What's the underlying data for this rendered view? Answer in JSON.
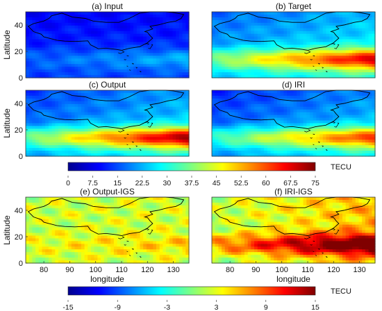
{
  "chart_data": [
    {
      "type": "heatmap",
      "title": "(a) Input",
      "ylabel": "Latitude",
      "yticks": [
        "0",
        "20",
        "40"
      ],
      "ylim": [
        0,
        50
      ],
      "xlim": [
        73,
        136
      ],
      "colorscale": "TECU",
      "range": [
        0,
        75
      ],
      "field": {
        "base": 14,
        "lat_gain": -0.1,
        "eq_peak": 6,
        "east_gain": 0.03
      }
    },
    {
      "type": "heatmap",
      "title": "(b) Target",
      "yticks": [],
      "ylim": [
        0,
        50
      ],
      "xlim": [
        73,
        136
      ],
      "colorscale": "TECU",
      "range": [
        0,
        75
      ],
      "field": {
        "base": 24,
        "lat_gain": -0.15,
        "eq_peak": 26,
        "east_gain": 0.35
      }
    },
    {
      "type": "heatmap",
      "title": "(c) Output",
      "ylabel": "Latitude",
      "yticks": [
        "0",
        "20",
        "40"
      ],
      "ylim": [
        0,
        50
      ],
      "xlim": [
        73,
        136
      ],
      "colorscale": "TECU",
      "range": [
        0,
        75
      ],
      "field": {
        "base": 21,
        "lat_gain": -0.15,
        "eq_peak": 30,
        "east_gain": 0.4
      }
    },
    {
      "type": "heatmap",
      "title": "(d) IRI",
      "yticks": [],
      "ylim": [
        0,
        50
      ],
      "xlim": [
        73,
        136
      ],
      "colorscale": "TECU",
      "range": [
        0,
        75
      ],
      "field": {
        "base": 20,
        "lat_gain": -0.16,
        "eq_peak": 24,
        "east_gain": 0.4
      }
    },
    {
      "type": "heatmap",
      "title": "(e) Output-IGS",
      "ylabel": "Latitude",
      "yticks": [
        "0",
        "20",
        "40"
      ],
      "xlabel": "longitude",
      "xticks": [
        "80",
        "90",
        "100",
        "110",
        "120",
        "130"
      ],
      "ylim": [
        0,
        50
      ],
      "xlim": [
        73,
        136
      ],
      "colorscale": "diff",
      "range": [
        -15,
        15
      ],
      "field": {
        "base": 2.2,
        "lat_gain": 0,
        "eq_peak": 1.5,
        "east_gain": 0.02
      }
    },
    {
      "type": "heatmap",
      "title": "(f) IRI-IGS",
      "xlabel": "longitude",
      "xticks": [
        "80",
        "90",
        "100",
        "110",
        "120",
        "130"
      ],
      "ylim": [
        0,
        50
      ],
      "xlim": [
        73,
        136
      ],
      "colorscale": "diff",
      "range": [
        -15,
        15
      ],
      "field": {
        "base": 1,
        "lat_gain": 0.02,
        "eq_peak": 9,
        "east_gain": 0.22
      }
    }
  ],
  "colorbars": {
    "tec": {
      "label": "TECU",
      "ticks": [
        "0",
        "7.5",
        "15",
        "22.5",
        "30",
        "37.5",
        "45",
        "52.5",
        "60",
        "67.5",
        "75"
      ]
    },
    "diff": {
      "label": "TECU",
      "ticks": [
        "-15",
        "-9",
        "-3",
        "3",
        "9",
        "15"
      ]
    }
  },
  "colormap": [
    "#00008f",
    "#0000ff",
    "#0080ff",
    "#00ffff",
    "#80ff80",
    "#ffff00",
    "#ff8000",
    "#ff0000",
    "#800000"
  ]
}
